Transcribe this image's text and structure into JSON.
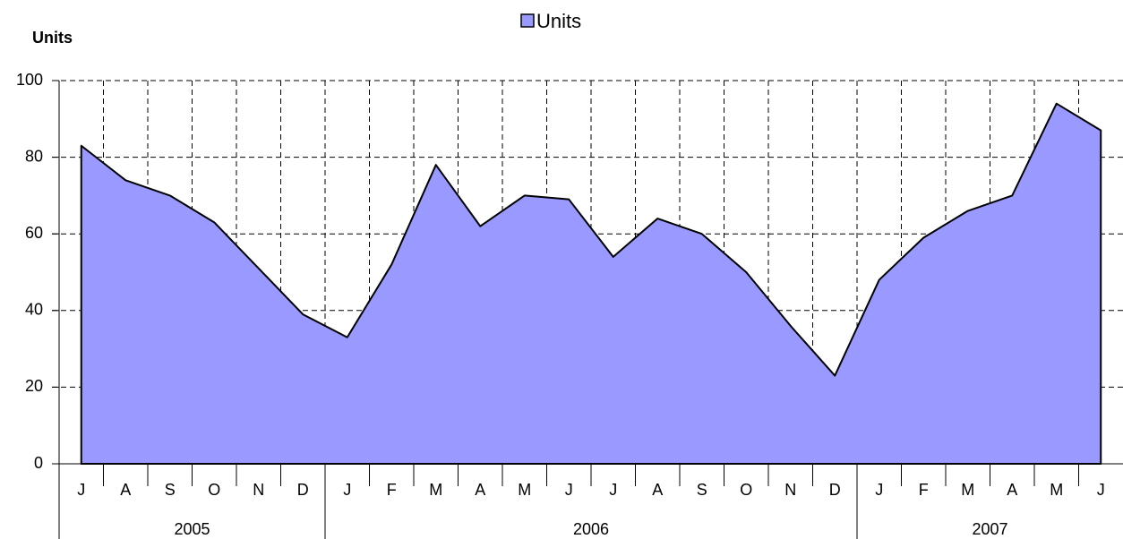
{
  "chart_data": {
    "type": "area",
    "y_label": "Units",
    "categories": [
      "J",
      "A",
      "S",
      "O",
      "N",
      "D",
      "J",
      "F",
      "M",
      "A",
      "M",
      "J",
      "J",
      "A",
      "S",
      "O",
      "N",
      "D",
      "J",
      "F",
      "M",
      "A",
      "M",
      "J"
    ],
    "groups": [
      {
        "label": "2005",
        "span": 6
      },
      {
        "label": "2006",
        "span": 12
      },
      {
        "label": "2007",
        "span": 6
      }
    ],
    "series": [
      {
        "name": "Units",
        "color": "#9999ff",
        "values": [
          83,
          74,
          70,
          63,
          51,
          39,
          33,
          52,
          78,
          62,
          70,
          69,
          54,
          64,
          60,
          50,
          36,
          23,
          48,
          59,
          66,
          70,
          94,
          87
        ]
      }
    ],
    "ylim": [
      0,
      100
    ],
    "yticks": [
      0,
      20,
      40,
      60,
      80,
      100
    ],
    "grid": true,
    "legend": "top"
  }
}
